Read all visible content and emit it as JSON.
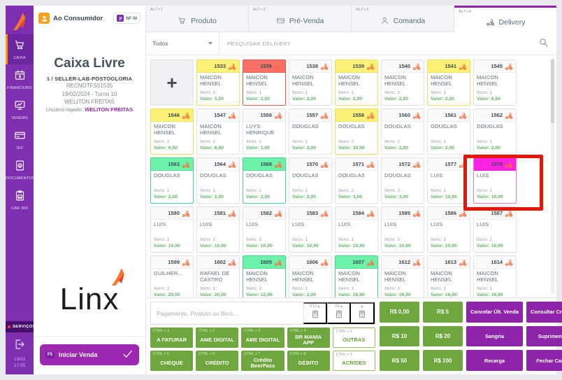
{
  "sidebar": {
    "items": [
      {
        "label": "CAIXA",
        "icon": "cart-icon",
        "active": true
      },
      {
        "label": "FINANCEIRO",
        "icon": "calendar-money-icon",
        "active": false
      },
      {
        "label": "VENDAS",
        "icon": "sales-chart-icon",
        "active": false
      },
      {
        "label": "TEF",
        "icon": "credit-card-icon",
        "active": false
      },
      {
        "label": "DOCUMENTOS",
        "icon": "document-money-icon",
        "active": false
      },
      {
        "label": "CAR 360",
        "icon": "clipboard-car-icon",
        "active": false
      }
    ],
    "servicos_label": "SERVIÇOS",
    "date": "13/03",
    "time": "17:05"
  },
  "panel": {
    "customer": "Ao Consumidor",
    "nf_badge": "NF-M",
    "title": "Caixa Livre",
    "store": "1 / SELLER-LAB-POSTOGLORIA",
    "register": "RECNOTFS51535",
    "shift": "19/02/2024 - Turno 10",
    "operator": "WELITON FREITAS",
    "logged_label": "Usuário logado:",
    "logged_user": "WELITON FREITAS",
    "logo_text": "Linx",
    "start_sale": {
      "key": "F5",
      "label": "Iniciar Venda"
    }
  },
  "tabs": [
    {
      "shortcut": "ALT+1",
      "label": "Produto",
      "icon": "cart-icon",
      "active": false
    },
    {
      "shortcut": "ALT+2",
      "label": "Pré-Venda",
      "icon": "prevenda-card-icon",
      "active": false
    },
    {
      "shortcut": "ALT+3",
      "label": "Comanda",
      "icon": "person-icon",
      "active": false
    },
    {
      "shortcut": "ALT+4",
      "label": "Delivery",
      "icon": "scooter-icon",
      "active": true
    }
  ],
  "filter": {
    "dropdown": "Todos",
    "search_placeholder": "PESQUISAR DELIVERY"
  },
  "grid": {
    "add_label": "+"
  },
  "labels": {
    "itens": "Itens:",
    "valor": "Valor:"
  },
  "orders": [
    {
      "number": "1533",
      "name": "MAICON HENSEL",
      "itens": "1",
      "valor": "1,00",
      "color": "yellow"
    },
    {
      "number": "1536",
      "name": "MAICON HENSEL",
      "itens": "1",
      "valor": "2,00",
      "color": "red"
    },
    {
      "number": "1538",
      "name": "MAICON HENSEL",
      "itens": "1",
      "valor": "2,00",
      "color": "default"
    },
    {
      "number": "1539",
      "name": "MAICON HENSEL",
      "itens": "1",
      "valor": "2,00",
      "color": "yellow"
    },
    {
      "number": "1540",
      "name": "MAICON HENSEL",
      "itens": "1",
      "valor": "2,00",
      "color": "default"
    },
    {
      "number": "1541",
      "name": "MAICON HENSEL",
      "itens": "1",
      "valor": "2,00",
      "color": "yellow"
    },
    {
      "number": "1545",
      "name": "MAICON HENSEL",
      "itens": "1",
      "valor": "6,50",
      "color": "default"
    },
    {
      "number": "1546",
      "name": "MAICON HENSEL",
      "itens": "1",
      "valor": "6,50",
      "color": "yellow"
    },
    {
      "number": "1547",
      "name": "MAICON HENSEL",
      "itens": "1",
      "valor": "6,50",
      "color": "default"
    },
    {
      "number": "1556",
      "name": "LUYS HENRIQUE",
      "itens": "1",
      "valor": "1,00",
      "color": "default"
    },
    {
      "number": "1557",
      "name": "DOUGLAS",
      "itens": "1",
      "valor": "2,00",
      "color": "default"
    },
    {
      "number": "1558",
      "name": "DOUGLAS",
      "itens": "2",
      "valor": "34,50",
      "color": "yellow"
    },
    {
      "number": "1560",
      "name": "DOUGLAS",
      "itens": "1",
      "valor": "2,00",
      "color": "default"
    },
    {
      "number": "1561",
      "name": "DOUGLAS",
      "itens": "1",
      "valor": "2,00",
      "color": "default"
    },
    {
      "number": "1562",
      "name": "DOUGLAS",
      "itens": "1",
      "valor": "2,00",
      "color": "default"
    },
    {
      "number": "1563",
      "name": "DOUGLAS",
      "itens": "1",
      "valor": "2,00",
      "color": "green"
    },
    {
      "number": "1564",
      "name": "DOUGLAS",
      "itens": "1",
      "valor": "2,00",
      "color": "default"
    },
    {
      "number": "1568",
      "name": "DOUGLAS",
      "itens": "1",
      "valor": "2,00",
      "color": "green"
    },
    {
      "number": "1570",
      "name": "DOUGLAS",
      "itens": "1",
      "valor": "2,00",
      "color": "default"
    },
    {
      "number": "1571",
      "name": "DOUGLAS",
      "itens": "2",
      "valor": "3,00",
      "color": "default"
    },
    {
      "number": "1572",
      "name": "DOUGLAS",
      "itens": "2",
      "valor": "3,00",
      "color": "default"
    },
    {
      "number": "1577",
      "name": "LUIS",
      "itens": "1",
      "valor": "10,90",
      "color": "default"
    },
    {
      "number": "1578",
      "name": "LUIS",
      "itens": "1",
      "valor": "10,90",
      "color": "magenta"
    },
    {
      "number": "1580",
      "name": "LUIS",
      "itens": "1",
      "valor": "10,90",
      "color": "default"
    },
    {
      "number": "1581",
      "name": "LUIS",
      "itens": "1",
      "valor": "10,90",
      "color": "default"
    },
    {
      "number": "1582",
      "name": "LUIS",
      "itens": "1",
      "valor": "10,90",
      "color": "default"
    },
    {
      "number": "1583",
      "name": "LUIS",
      "itens": "1",
      "valor": "10,90",
      "color": "default"
    },
    {
      "number": "1584",
      "name": "LUIS",
      "itens": "1",
      "valor": "10,90",
      "color": "default"
    },
    {
      "number": "1585",
      "name": "LUIS",
      "itens": "1",
      "valor": "10,90",
      "color": "default"
    },
    {
      "number": "1586",
      "name": "LUIS",
      "itens": "1",
      "valor": "10,90",
      "color": "default"
    },
    {
      "number": "1587",
      "name": "LUIS",
      "itens": "1",
      "valor": "10,90",
      "color": "default"
    },
    {
      "number": "1599",
      "name": "GUILHER...",
      "itens": "1",
      "valor": "20,00",
      "color": "default"
    },
    {
      "number": "1602",
      "name": "RAFAEL DE CASTRO",
      "itens": "1",
      "valor": "20,00",
      "color": "default"
    },
    {
      "number": "1605",
      "name": "MAICON HENSEL",
      "itens": "2",
      "valor": "12,96",
      "color": "green"
    },
    {
      "number": "1606",
      "name": "MAICON HENSEL",
      "itens": "1",
      "valor": "2,00",
      "color": "default"
    },
    {
      "number": "1607",
      "name": "MAICON HENSEL",
      "itens": "1",
      "valor": "16,90",
      "color": "green"
    },
    {
      "number": "1612",
      "name": "MAICON HENSEL",
      "itens": "1",
      "valor": "16,90",
      "color": "default"
    },
    {
      "number": "1613",
      "name": "MAICON HENSEL",
      "itens": "1",
      "valor": "16,90",
      "color": "default"
    },
    {
      "number": "1614",
      "name": "MAICON HENSEL",
      "itens": "1",
      "valor": "16,90",
      "color": "default"
    }
  ],
  "payment": {
    "input_placeholder": "Pagamento, Produto ou Bico...",
    "fkeys": [
      "F12",
      "F9"
    ],
    "buttons": [
      {
        "shortcut": "CTRL + 1",
        "label": "A FATURAR",
        "style": "solid"
      },
      {
        "shortcut": "CTRL + 2",
        "label": "AME DIGITAL",
        "style": "solid"
      },
      {
        "shortcut": "CTRL + 3",
        "label": "AME DIGITAL",
        "style": "solid"
      },
      {
        "shortcut": "CTRL + 4",
        "label": "BR MANIA APP",
        "style": "solid"
      },
      {
        "shortcut": "CTRL + 9",
        "label": "OUTRAS",
        "style": "outline"
      },
      {
        "shortcut": "CTRL + 5",
        "label": "CHEQUE",
        "style": "solid"
      },
      {
        "shortcut": "CTRL + 6",
        "label": "CRÉDITO",
        "style": "solid"
      },
      {
        "shortcut": "CTRL + 7",
        "label": "Crédito BeerPass",
        "style": "solid"
      },
      {
        "shortcut": "CTRL + 8",
        "label": "DÉBITO",
        "style": "solid"
      },
      {
        "shortcut": "CTRL + 0",
        "label": "ACR/DES",
        "style": "outline"
      }
    ],
    "right_buttons": [
      {
        "label": "R$ 0,00",
        "kind": "cash"
      },
      {
        "label": "R$ 5",
        "kind": "cash"
      },
      {
        "label": "Cancelar Últ. Venda",
        "kind": "action"
      },
      {
        "label": "Consultar Crédito",
        "kind": "action"
      },
      {
        "label": "R$ 10",
        "kind": "cash"
      },
      {
        "label": "R$ 20",
        "kind": "cash"
      },
      {
        "label": "Sangria",
        "kind": "action"
      },
      {
        "label": "Suprimento",
        "kind": "action"
      },
      {
        "label": "R$ 50",
        "kind": "cash"
      },
      {
        "label": "R$ 100",
        "kind": "cash"
      },
      {
        "label": "Recarga",
        "kind": "action"
      },
      {
        "label": "Fechar Caixa",
        "kind": "action"
      }
    ]
  },
  "annotation": {
    "target_order": "1578",
    "color": "#e8150b"
  },
  "colors": {
    "sidebar_purple": "#7d2fb0",
    "accent_purple": "#9c27b0",
    "button_purple": "#8e24aa",
    "button_green": "#6fa73f",
    "value_green": "#5fb563",
    "active_tab_border": "#8e24aa",
    "card_yellow": "#fdf278",
    "card_red": "#f87168",
    "card_green": "#6cf2a9",
    "card_magenta": "#fb22e4",
    "active_item_orange": "#ff9800"
  }
}
